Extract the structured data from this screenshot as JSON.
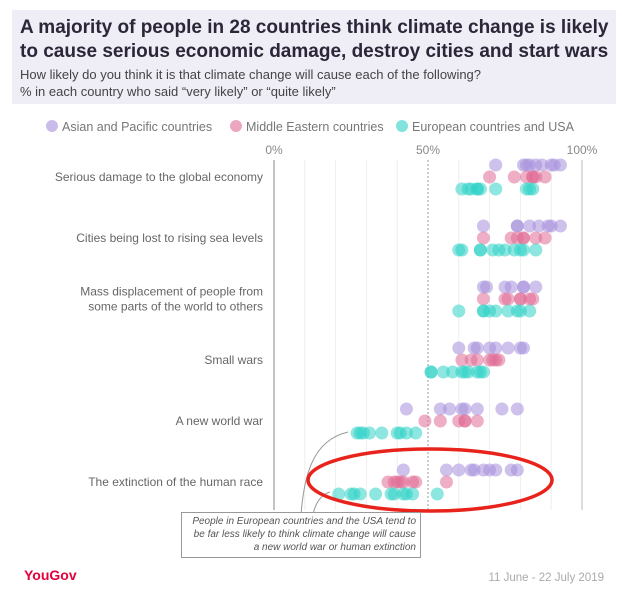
{
  "header": {
    "title": "A majority of people in 28 countries think climate change is likely to cause serious economic damage, destroy cities and start wars",
    "subtitle_1": "How likely do you think it is that climate change will cause each of the following?",
    "subtitle_2": "% in each country who said “very likely” or “quite likely”"
  },
  "annotation": "People in European countries and the USA tend to be far less likely to think climate change will cause a new world war or human extinction",
  "footer": {
    "logo": "YouGov",
    "date": "11 June - 22 July 2019"
  },
  "chart_data": {
    "type": "scatter",
    "title": "A majority of people in 28 countries think climate change is likely to cause serious economic damage, destroy cities and start wars",
    "xlim": [
      0,
      100
    ],
    "x_ticks": [
      "0%",
      "50%",
      "100%"
    ],
    "series": [
      {
        "name": "Asian and Pacific countries",
        "color": "#a58fdc"
      },
      {
        "name": "Middle Eastern countries",
        "color": "#e06b95"
      },
      {
        "name": "European countries and USA",
        "color": "#2fd1c6"
      }
    ],
    "categories": [
      {
        "label": [
          "Serious damage to the global economy"
        ],
        "values": [
          [
            72,
            81,
            82,
            83,
            85,
            87,
            90,
            91,
            93
          ],
          [
            70,
            78,
            82,
            84,
            84,
            85,
            88
          ],
          [
            61,
            63,
            64,
            66,
            66,
            67,
            72,
            82,
            83,
            84
          ]
        ]
      },
      {
        "label": [
          "Cities being lost to rising sea levels"
        ],
        "values": [
          [
            68,
            79,
            79,
            83,
            86,
            89,
            90,
            93
          ],
          [
            68,
            77,
            79,
            81,
            81,
            85,
            88
          ],
          [
            60,
            61,
            67,
            67,
            71,
            73,
            75,
            78,
            80,
            81,
            85
          ]
        ]
      },
      {
        "label": [
          "Mass displacement of people from",
          "some parts of the world to others"
        ],
        "values": [
          [
            68,
            69,
            75,
            77,
            81,
            81,
            85
          ],
          [
            68,
            75,
            76,
            80,
            80,
            83,
            84
          ],
          [
            60,
            68,
            68,
            70,
            72,
            76,
            79,
            80,
            83
          ]
        ]
      },
      {
        "label": [
          "Small wars"
        ],
        "values": [
          [
            60,
            65,
            66,
            70,
            72,
            76,
            80,
            81
          ],
          [
            61,
            64,
            66,
            70,
            71,
            72,
            73
          ],
          [
            51,
            51,
            55,
            58,
            61,
            62,
            63,
            66,
            67,
            68
          ]
        ]
      },
      {
        "label": [
          "A new world war"
        ],
        "values": [
          [
            43,
            54,
            57,
            61,
            62,
            66,
            74,
            79
          ],
          [
            49,
            54,
            60,
            62,
            62,
            66
          ],
          [
            27,
            28,
            29,
            31,
            35,
            40,
            41,
            43,
            46
          ]
        ]
      },
      {
        "label": [
          "The extinction of the human race"
        ],
        "values": [
          [
            42,
            56,
            60,
            64,
            65,
            68,
            70,
            72,
            77,
            79
          ],
          [
            37,
            39,
            40,
            41,
            42,
            45,
            46,
            56
          ],
          [
            21,
            25,
            26,
            28,
            33,
            38,
            39,
            42,
            43,
            45,
            53
          ]
        ]
      }
    ]
  }
}
